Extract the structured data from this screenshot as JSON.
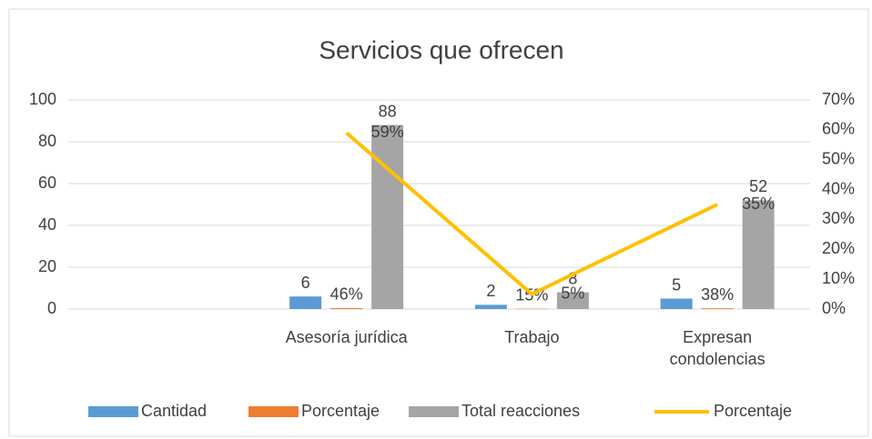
{
  "chart_data": {
    "type": "bar",
    "title": "Servicios que ofrecen",
    "categories": [
      null,
      "Asesoría jurídica",
      "Trabajo",
      "Expresan condolencias"
    ],
    "series": [
      {
        "name": "Cantidad",
        "type": "bar",
        "color": "#5b9bd5",
        "values": [
          null,
          6,
          2,
          5
        ]
      },
      {
        "name": "Porcentaje",
        "type": "bar",
        "color": "#ed7d31",
        "values": [
          null,
          0.46,
          0.15,
          0.38
        ],
        "value_labels": [
          null,
          "46%",
          "15%",
          "38%"
        ]
      },
      {
        "name": "Total reacciones",
        "type": "bar",
        "color": "#a5a5a5",
        "values": [
          null,
          88,
          8,
          52
        ]
      },
      {
        "name": "Porcentaje",
        "type": "line",
        "axis": "y2",
        "color": "#ffc000",
        "values": [
          null,
          59,
          5,
          35
        ],
        "value_labels": [
          null,
          "59%",
          "5%",
          "35%"
        ]
      }
    ],
    "ylim": [
      0,
      100
    ],
    "yticks": [
      0,
      20,
      40,
      60,
      80,
      100
    ],
    "y2lim": [
      0,
      70
    ],
    "y2ticks": [
      {
        "value": 0,
        "label": "0%"
      },
      {
        "value": 10,
        "label": "10%"
      },
      {
        "value": 20,
        "label": "20%"
      },
      {
        "value": 30,
        "label": "30%"
      },
      {
        "value": 40,
        "label": "40%"
      },
      {
        "value": 50,
        "label": "50%"
      },
      {
        "value": 60,
        "label": "60%"
      },
      {
        "value": 70,
        "label": "70%"
      }
    ],
    "grid": true,
    "legend": "bottom"
  }
}
